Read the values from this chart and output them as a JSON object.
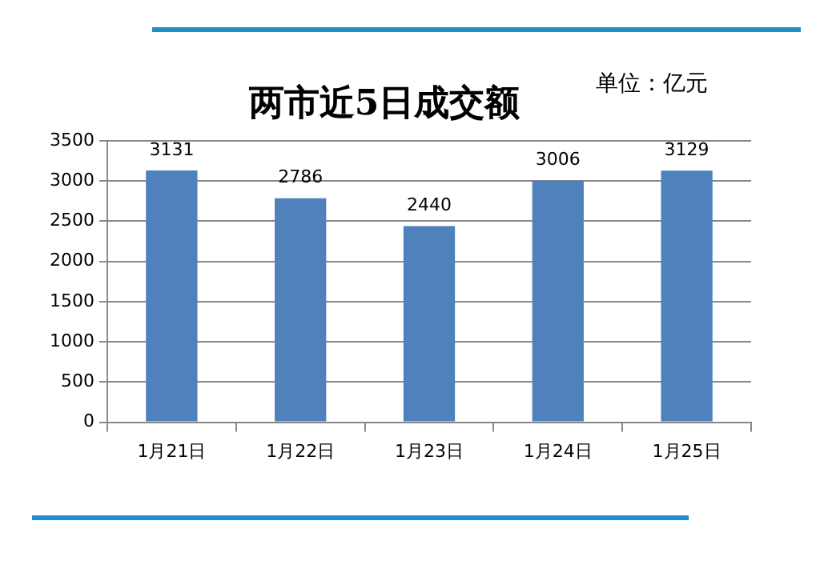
{
  "chart_data": {
    "type": "bar",
    "title": "两市近5日成交额",
    "annotations": [
      "单位：亿元"
    ],
    "categories": [
      "1月21日",
      "1月22日",
      "1月23日",
      "1月24日",
      "1月25日"
    ],
    "values": [
      3131,
      2786,
      2440,
      3006,
      3129
    ],
    "color": "#4f81bd",
    "ylim": [
      0,
      3500
    ],
    "yticks": [
      0,
      500,
      1000,
      1500,
      2000,
      2500,
      3000,
      3500
    ],
    "grid": "y",
    "data_labels": true,
    "legend": false
  }
}
